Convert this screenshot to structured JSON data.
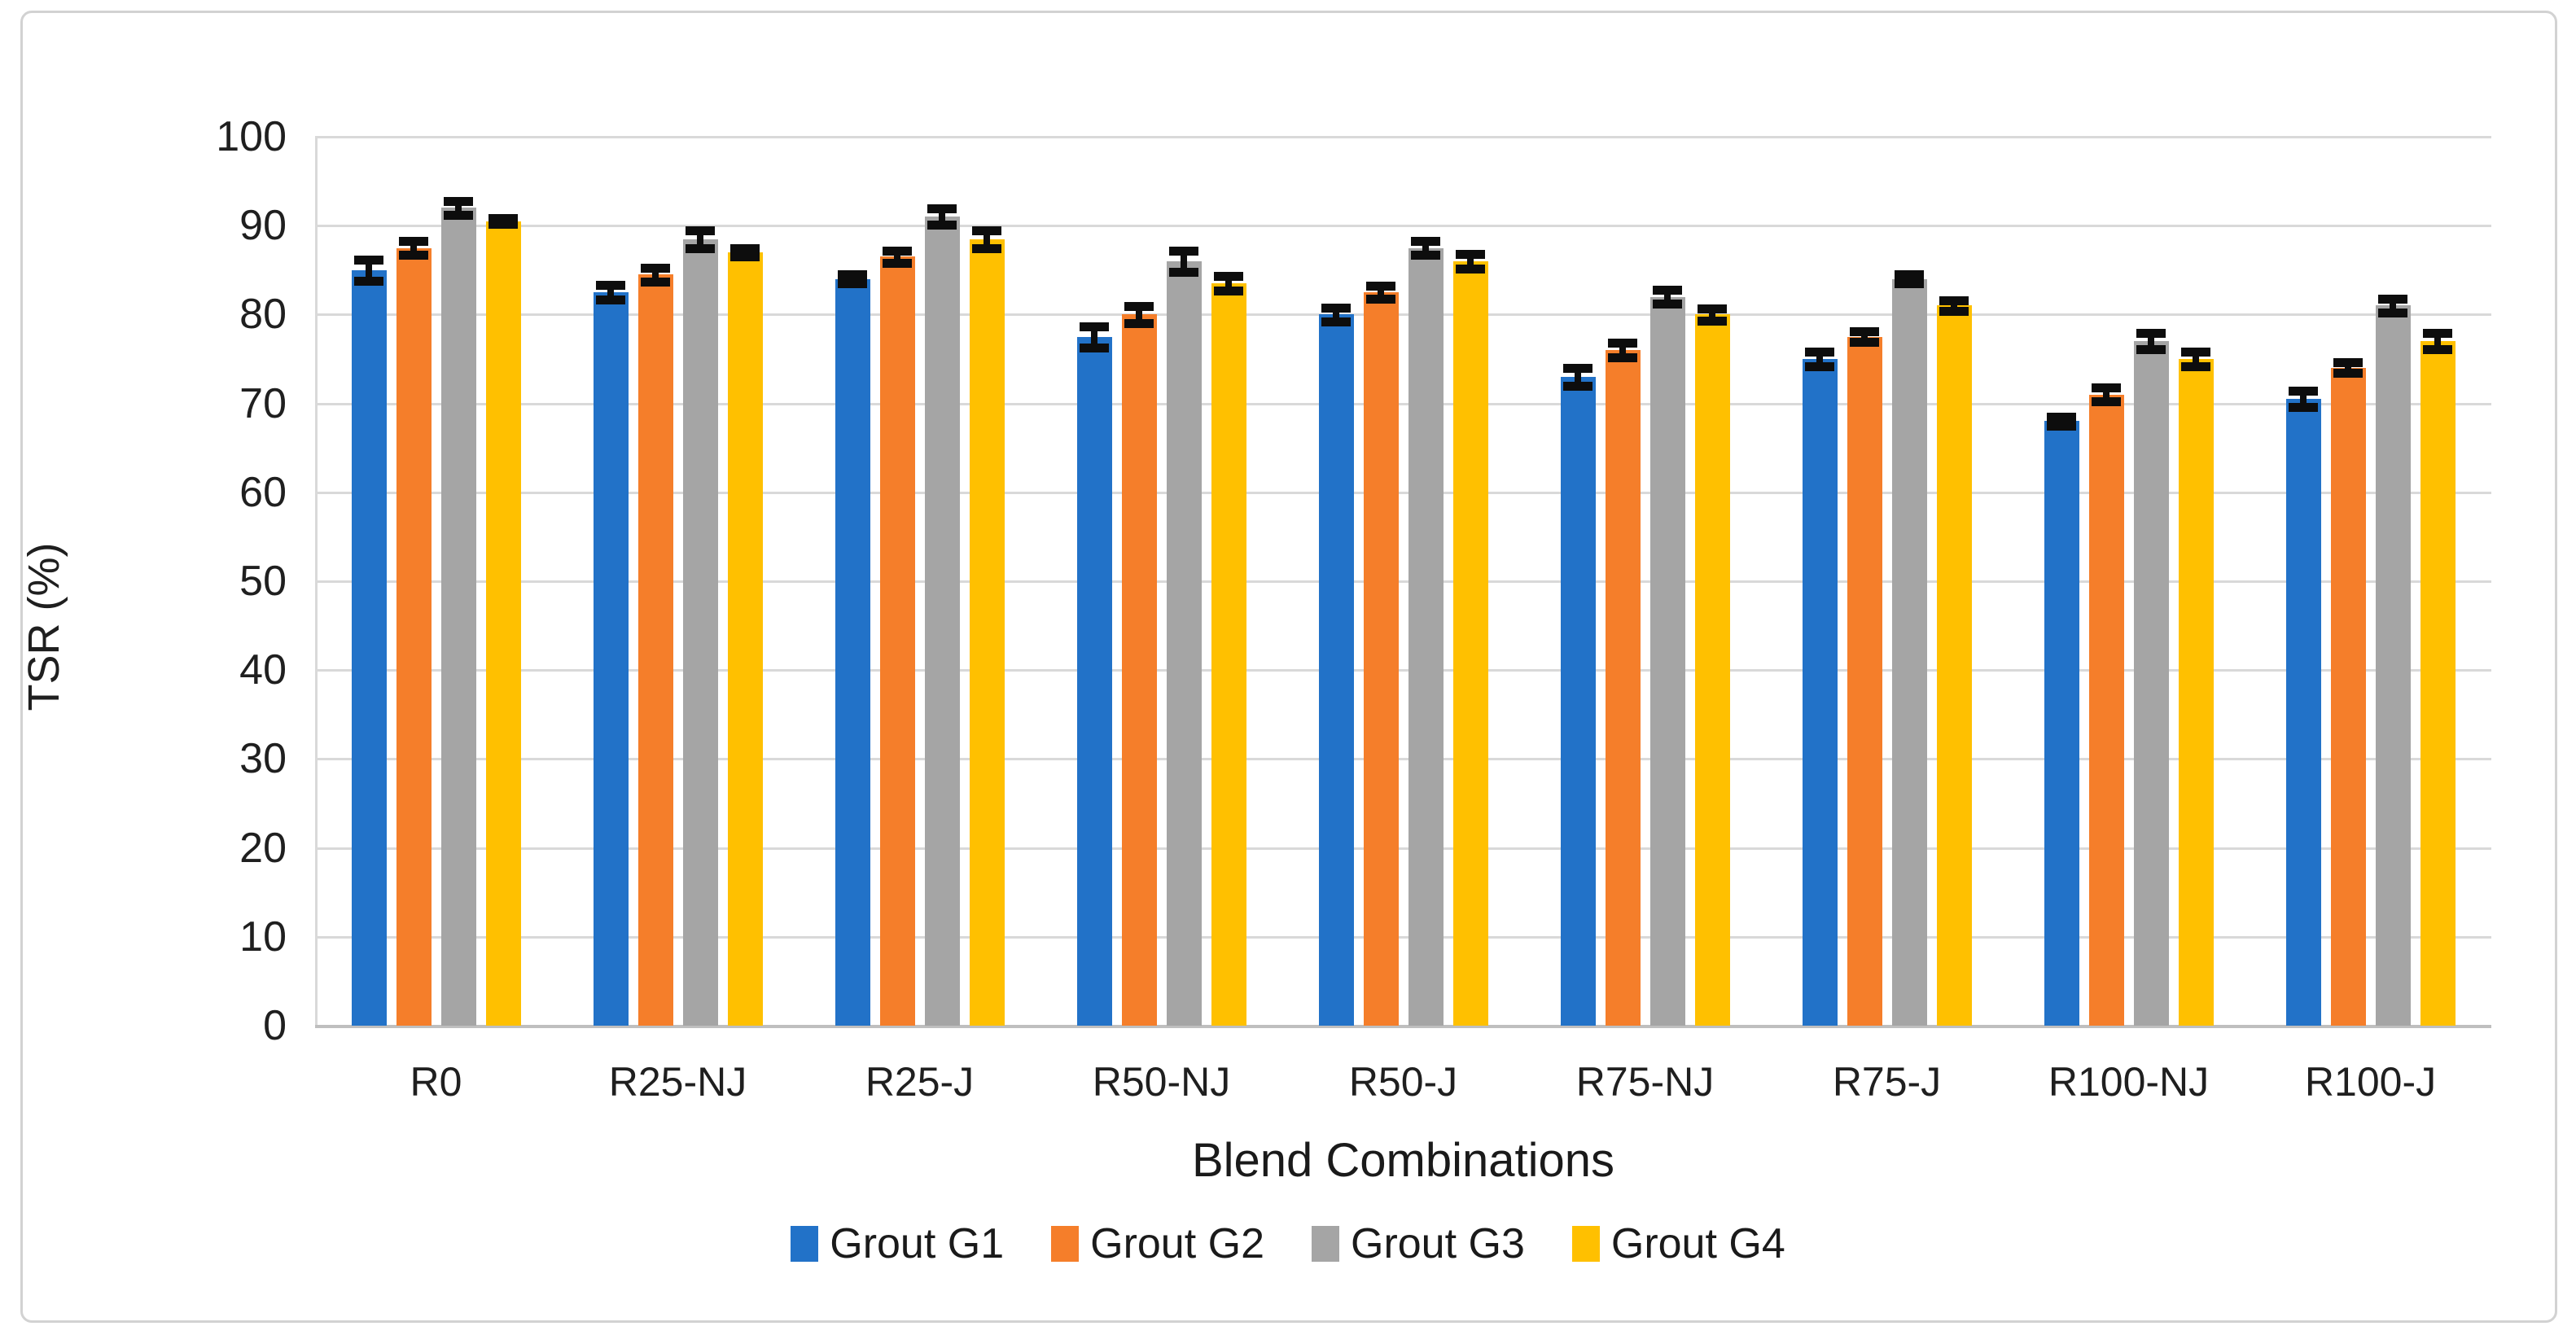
{
  "figure": {
    "background": "#ffffff",
    "frame_border_color": "#d2d2d2"
  },
  "colors": {
    "gridline": "#d9d9d9",
    "axis_baseline": "#bfbfbf",
    "error_bar": "#0d0d0d",
    "text": "#1a1a1a"
  },
  "chart_data": {
    "type": "bar",
    "title": "",
    "xlabel": "Blend Combinations",
    "ylabel": "TSR (%)",
    "ylim": [
      0,
      100
    ],
    "ytick_step": 10,
    "grid": true,
    "legend_position": "bottom",
    "categories": [
      "R0",
      "R25-NJ",
      "R25-J",
      "R50-NJ",
      "R50-J",
      "R75-NJ",
      "R75-J",
      "R100-NJ",
      "R100-J"
    ],
    "series": [
      {
        "name": "Grout G1",
        "color": "#2272C8",
        "values": [
          85,
          82.5,
          84,
          77.5,
          80,
          73,
          75,
          68,
          70.5
        ],
        "errors": [
          1.2,
          0.8,
          0.5,
          1.2,
          0.8,
          1.0,
          0.8,
          0.5,
          0.9
        ]
      },
      {
        "name": "Grout G2",
        "color": "#F57E2A",
        "values": [
          87.5,
          84.5,
          86.5,
          80,
          82.5,
          76,
          77.5,
          71,
          74
        ],
        "errors": [
          0.8,
          0.8,
          0.7,
          1.0,
          0.7,
          0.8,
          0.6,
          0.8,
          0.6
        ]
      },
      {
        "name": "Grout G3",
        "color": "#A5A5A5",
        "values": [
          92,
          88.5,
          91,
          86,
          87.5,
          82,
          84,
          77,
          81
        ],
        "errors": [
          0.8,
          1.0,
          0.9,
          1.2,
          0.8,
          0.8,
          0.5,
          0.9,
          0.8
        ]
      },
      {
        "name": "Grout G4",
        "color": "#FFC000",
        "values": [
          90.5,
          87,
          88.5,
          83.5,
          86,
          80,
          81,
          75,
          77
        ],
        "errors": [
          0.3,
          0.5,
          1.0,
          0.8,
          0.8,
          0.7,
          0.6,
          0.8,
          0.9
        ]
      }
    ]
  }
}
